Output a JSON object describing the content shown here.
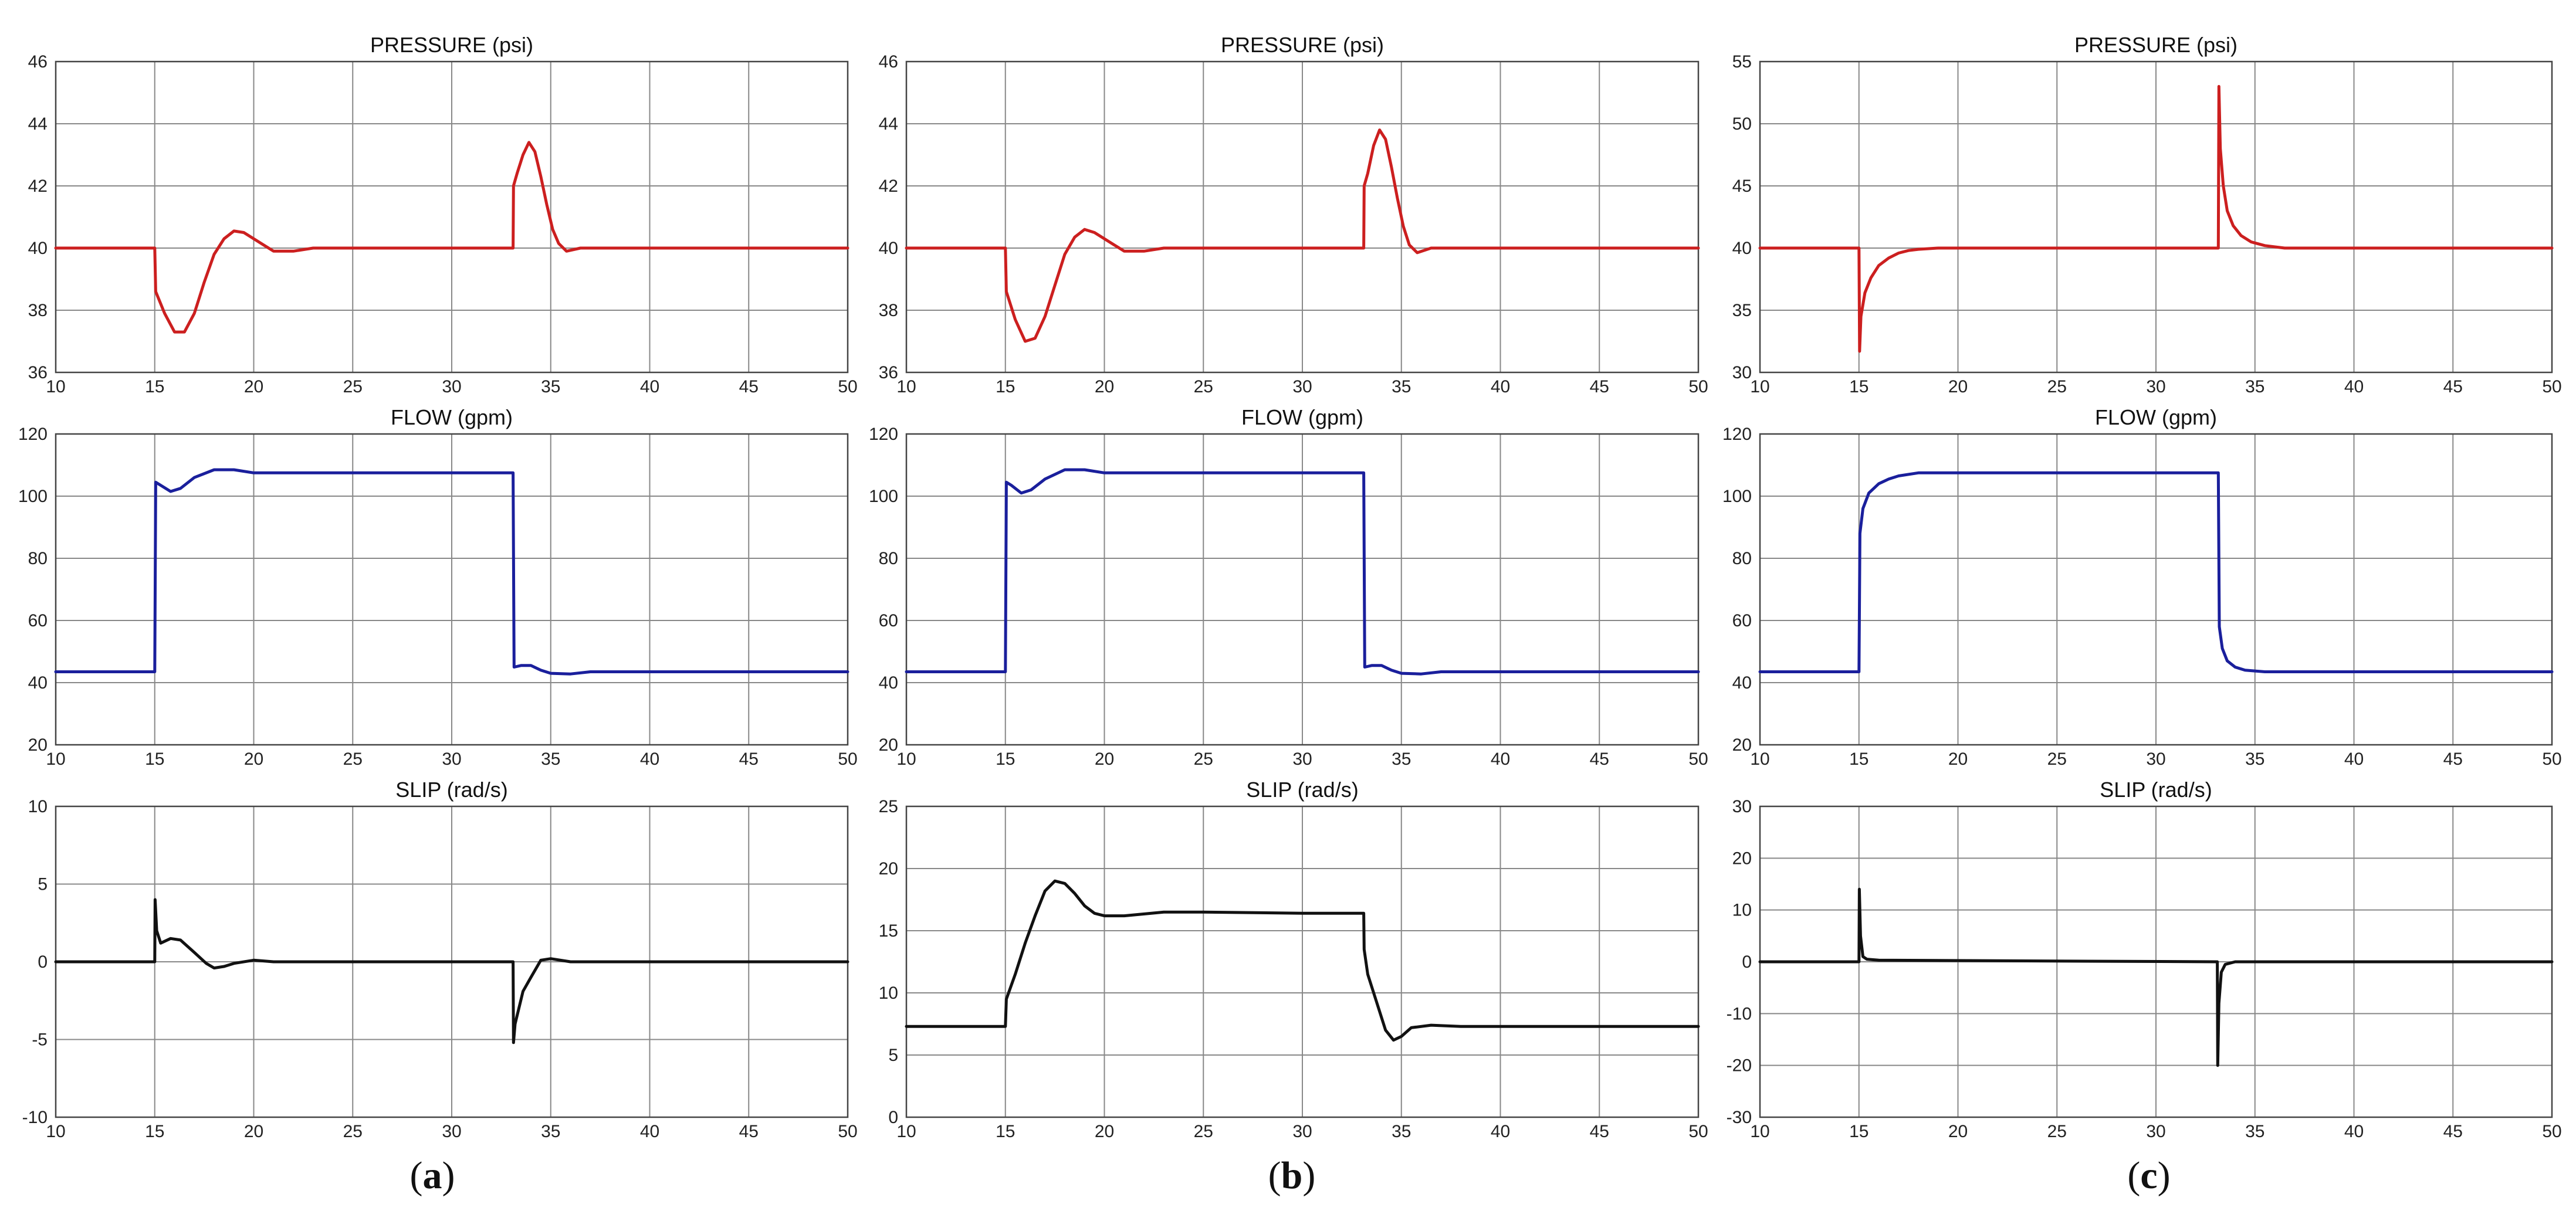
{
  "figure": {
    "panels": [
      {
        "letter_open": "(",
        "letter": "a",
        "letter_close": ")"
      },
      {
        "letter_open": "(",
        "letter": "b",
        "letter_close": ")"
      },
      {
        "letter_open": "(",
        "letter": "c",
        "letter_close": ")"
      }
    ]
  },
  "colors": {
    "pressure": "#cc1f1f",
    "flow": "#1a1f9c",
    "slip": "#111111"
  },
  "chart_data": [
    {
      "id": "a-pressure",
      "type": "line",
      "title": "PRESSURE (psi)",
      "color_key": "pressure",
      "xlim": [
        10,
        50
      ],
      "xticks": [
        10,
        15,
        20,
        25,
        30,
        35,
        40,
        45,
        50
      ],
      "ylim": [
        36,
        46
      ],
      "yticks": [
        36,
        38,
        40,
        42,
        44,
        46
      ],
      "x": [
        10,
        15,
        15.05,
        15.5,
        16,
        16.5,
        17,
        17.5,
        18,
        18.5,
        19,
        19.5,
        20,
        20.5,
        21,
        22,
        23,
        33.1,
        33.12,
        33.3,
        33.6,
        33.9,
        34.2,
        34.5,
        34.8,
        35.1,
        35.4,
        35.8,
        36.5,
        38,
        50
      ],
      "y": [
        40,
        40,
        38.6,
        37.9,
        37.3,
        37.3,
        37.9,
        38.9,
        39.8,
        40.3,
        40.55,
        40.5,
        40.3,
        40.1,
        39.9,
        39.9,
        40,
        40,
        42,
        42.4,
        43,
        43.4,
        43.1,
        42.3,
        41.4,
        40.6,
        40.15,
        39.9,
        40,
        40,
        40
      ]
    },
    {
      "id": "a-flow",
      "type": "line",
      "title": "FLOW (gpm)",
      "color_key": "flow",
      "xlim": [
        10,
        50
      ],
      "xticks": [
        10,
        15,
        20,
        25,
        30,
        35,
        40,
        45,
        50
      ],
      "ylim": [
        20,
        120
      ],
      "yticks": [
        20,
        40,
        60,
        80,
        100,
        120
      ],
      "x": [
        10,
        15,
        15.05,
        15.3,
        15.8,
        16.3,
        17,
        18,
        19,
        20,
        21,
        22,
        25,
        30,
        33.1,
        33.15,
        33.5,
        34,
        34.5,
        35,
        36,
        37,
        40,
        50
      ],
      "y": [
        43.5,
        43.5,
        104.5,
        103.5,
        101.5,
        102.5,
        106,
        108.5,
        108.5,
        107.5,
        107.5,
        107.5,
        107.5,
        107.5,
        107.5,
        45,
        45.5,
        45.5,
        44,
        43,
        42.8,
        43.5,
        43.5,
        43.5
      ]
    },
    {
      "id": "a-slip",
      "type": "line",
      "title": "SLIP (rad/s)",
      "color_key": "slip",
      "xlim": [
        10,
        50
      ],
      "xticks": [
        10,
        15,
        20,
        25,
        30,
        35,
        40,
        45,
        50
      ],
      "ylim": [
        -10,
        10
      ],
      "yticks": [
        -10,
        -5,
        0,
        5,
        10
      ],
      "x": [
        10,
        15,
        15.02,
        15.1,
        15.3,
        15.8,
        16.3,
        17,
        17.6,
        18,
        18.5,
        19,
        20,
        21,
        33.1,
        33.12,
        33.2,
        33.6,
        34,
        34.5,
        35,
        36,
        50
      ],
      "y": [
        0,
        0,
        4,
        2,
        1.2,
        1.5,
        1.4,
        0.6,
        -0.1,
        -0.4,
        -0.3,
        -0.1,
        0.1,
        0,
        0,
        -5.2,
        -4,
        -1.9,
        -1,
        0.1,
        0.2,
        0,
        0
      ]
    },
    {
      "id": "b-pressure",
      "type": "line",
      "title": "PRESSURE (psi)",
      "color_key": "pressure",
      "xlim": [
        10,
        50
      ],
      "xticks": [
        10,
        15,
        20,
        25,
        30,
        35,
        40,
        45,
        50
      ],
      "ylim": [
        36,
        46
      ],
      "yticks": [
        36,
        38,
        40,
        42,
        44,
        46
      ],
      "x": [
        10,
        15,
        15.05,
        15.5,
        16,
        16.5,
        17,
        17.5,
        18,
        18.5,
        19,
        19.5,
        20,
        20.5,
        21,
        22,
        23,
        33.1,
        33.12,
        33.3,
        33.6,
        33.9,
        34.2,
        34.5,
        34.8,
        35.1,
        35.4,
        35.8,
        36.5,
        38,
        50
      ],
      "y": [
        40,
        40,
        38.6,
        37.7,
        37,
        37.1,
        37.8,
        38.8,
        39.8,
        40.35,
        40.6,
        40.5,
        40.3,
        40.1,
        39.9,
        39.9,
        40,
        40,
        42,
        42.4,
        43.3,
        43.8,
        43.5,
        42.6,
        41.6,
        40.7,
        40.1,
        39.85,
        40,
        40,
        40
      ]
    },
    {
      "id": "b-flow",
      "type": "line",
      "title": "FLOW (gpm)",
      "color_key": "flow",
      "xlim": [
        10,
        50
      ],
      "xticks": [
        10,
        15,
        20,
        25,
        30,
        35,
        40,
        45,
        50
      ],
      "ylim": [
        20,
        120
      ],
      "yticks": [
        20,
        40,
        60,
        80,
        100,
        120
      ],
      "x": [
        10,
        15,
        15.05,
        15.3,
        15.8,
        16.3,
        17,
        18,
        19,
        20,
        21,
        22,
        25,
        30,
        33.1,
        33.15,
        33.5,
        34,
        34.5,
        35,
        36,
        37,
        40,
        50
      ],
      "y": [
        43.5,
        43.5,
        104.5,
        103.5,
        101,
        102,
        105.5,
        108.5,
        108.5,
        107.5,
        107.5,
        107.5,
        107.5,
        107.5,
        107.5,
        45,
        45.5,
        45.5,
        44,
        43,
        42.8,
        43.5,
        43.5,
        43.5
      ]
    },
    {
      "id": "b-slip",
      "type": "line",
      "title": "SLIP (rad/s)",
      "color_key": "slip",
      "xlim": [
        10,
        50
      ],
      "xticks": [
        10,
        15,
        20,
        25,
        30,
        35,
        40,
        45,
        50
      ],
      "ylim": [
        0,
        25
      ],
      "yticks": [
        0,
        5,
        10,
        15,
        20,
        25
      ],
      "x": [
        10,
        15,
        15.05,
        15.5,
        16,
        16.5,
        17,
        17.5,
        18,
        18.5,
        19,
        19.5,
        20,
        21,
        23,
        25,
        30,
        33.1,
        33.12,
        33.3,
        33.8,
        34.2,
        34.6,
        35,
        35.5,
        36.5,
        38,
        50
      ],
      "y": [
        7.3,
        7.3,
        9.5,
        11.5,
        14,
        16.2,
        18.2,
        19,
        18.8,
        18,
        17,
        16.4,
        16.2,
        16.2,
        16.5,
        16.5,
        16.4,
        16.4,
        13.5,
        11.5,
        9,
        7,
        6.2,
        6.5,
        7.2,
        7.4,
        7.3,
        7.3
      ]
    },
    {
      "id": "c-pressure",
      "type": "line",
      "title": "PRESSURE (psi)",
      "color_key": "pressure",
      "xlim": [
        10,
        50
      ],
      "xticks": [
        10,
        15,
        20,
        25,
        30,
        35,
        40,
        45,
        50
      ],
      "ylim": [
        30,
        55
      ],
      "yticks": [
        30,
        35,
        40,
        45,
        50,
        55
      ],
      "x": [
        10,
        15,
        15.03,
        15.1,
        15.3,
        15.6,
        16,
        16.5,
        17,
        17.5,
        18,
        19,
        33.15,
        33.18,
        33.25,
        33.4,
        33.6,
        33.9,
        34.3,
        34.8,
        35.5,
        36.5,
        50
      ],
      "y": [
        40,
        40,
        31.7,
        34.5,
        36.4,
        37.6,
        38.6,
        39.2,
        39.6,
        39.8,
        39.9,
        40,
        40,
        53,
        48,
        45,
        43,
        41.8,
        41,
        40.5,
        40.2,
        40,
        40
      ]
    },
    {
      "id": "c-flow",
      "type": "line",
      "title": "FLOW (gpm)",
      "color_key": "flow",
      "xlim": [
        10,
        50
      ],
      "xticks": [
        10,
        15,
        20,
        25,
        30,
        35,
        40,
        45,
        50
      ],
      "ylim": [
        20,
        120
      ],
      "yticks": [
        20,
        40,
        60,
        80,
        100,
        120
      ],
      "x": [
        10,
        15,
        15.05,
        15.2,
        15.5,
        16,
        16.5,
        17,
        18,
        19,
        20,
        25,
        33.15,
        33.2,
        33.35,
        33.6,
        34,
        34.5,
        35.5,
        37,
        50
      ],
      "y": [
        43.5,
        43.5,
        88,
        96,
        101,
        104,
        105.5,
        106.5,
        107.5,
        107.5,
        107.5,
        107.5,
        107.5,
        58,
        51,
        47,
        45,
        44,
        43.5,
        43.5,
        43.5
      ]
    },
    {
      "id": "c-slip",
      "type": "line",
      "title": "SLIP (rad/s)",
      "color_key": "slip",
      "xlim": [
        10,
        50
      ],
      "xticks": [
        10,
        15,
        20,
        25,
        30,
        35,
        40,
        45,
        50
      ],
      "ylim": [
        -30,
        30
      ],
      "yticks": [
        -30,
        -20,
        -10,
        0,
        10,
        20,
        30
      ],
      "x": [
        10,
        15,
        15.02,
        15.08,
        15.2,
        15.4,
        16,
        33.1,
        33.12,
        33.18,
        33.3,
        33.5,
        34,
        50
      ],
      "y": [
        0,
        0,
        14,
        5,
        1,
        0.5,
        0.3,
        0,
        -20,
        -8,
        -2,
        -0.5,
        0,
        0
      ]
    }
  ]
}
